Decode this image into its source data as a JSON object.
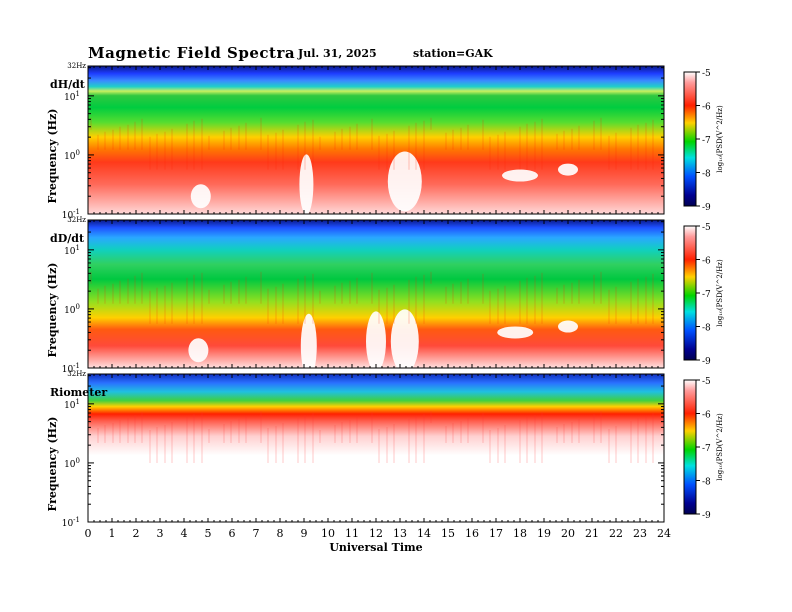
{
  "header": {
    "title": "Magnetic  Field  Spectra",
    "date": "Jul.  31, 2025",
    "station": "station=GAK"
  },
  "chart_data": [
    {
      "type": "heatmap",
      "panel_label": "dH/dt",
      "ylabel": "Frequency  (Hz)",
      "top_tick_label": "32Hz",
      "y_ticks": [
        {
          "base": "10",
          "exp": "1",
          "value": 10
        },
        {
          "base": "10",
          "exp": "0",
          "value": 1
        },
        {
          "base": "10",
          "exp": "-1",
          "value": 0.1
        }
      ],
      "ylim": [
        0.1,
        32
      ],
      "yscale": "log",
      "xlim": [
        0,
        24
      ],
      "intensity": "high-frequency band blue/green, red-white at low frequencies, white gaps near 4.5, 9, 13 and 18-20 UT"
    },
    {
      "type": "heatmap",
      "panel_label": "dD/dt",
      "ylabel": "Frequency  (Hz)",
      "top_tick_label": "32Hz",
      "y_ticks": [
        {
          "base": "10",
          "exp": "1",
          "value": 10
        },
        {
          "base": "10",
          "exp": "0",
          "value": 1
        },
        {
          "base": "10",
          "exp": "-1",
          "value": 0.1
        }
      ],
      "ylim": [
        0.1,
        32
      ],
      "yscale": "log",
      "xlim": [
        0,
        24
      ],
      "intensity": "similar to dH/dt with green extending lower, white gaps near 4.5, 9, 12-13 and 18-20 UT"
    },
    {
      "type": "heatmap",
      "panel_label": "Riometer",
      "ylabel": "Frequency  (Hz)",
      "top_tick_label": "32Hz",
      "y_ticks": [
        {
          "base": "10",
          "exp": "1",
          "value": 10
        },
        {
          "base": "10",
          "exp": "0",
          "value": 1
        },
        {
          "base": "10",
          "exp": "-1",
          "value": 0.1
        }
      ],
      "ylim": [
        0.1,
        32
      ],
      "yscale": "log",
      "xlim": [
        0,
        24
      ],
      "intensity": "blue/green top band, red band near 10 Hz, mostly white below 5 Hz"
    }
  ],
  "x_axis": {
    "label": "Universal Time",
    "ticks": [
      "0",
      "1",
      "2",
      "3",
      "4",
      "5",
      "6",
      "7",
      "8",
      "9",
      "10",
      "11",
      "12",
      "13",
      "14",
      "15",
      "16",
      "17",
      "18",
      "19",
      "20",
      "21",
      "22",
      "23",
      "24"
    ]
  },
  "colorbar": {
    "label": "log₁₀(PSD(V^2/Hz)",
    "ticks": [
      "-5",
      "-6",
      "-7",
      "-8",
      "-9"
    ],
    "range": [
      -9,
      -5
    ],
    "colors": [
      "#ffffff",
      "#ff2a00",
      "#ffe000",
      "#00d400",
      "#00e5ff",
      "#0050ff",
      "#00008a"
    ]
  }
}
